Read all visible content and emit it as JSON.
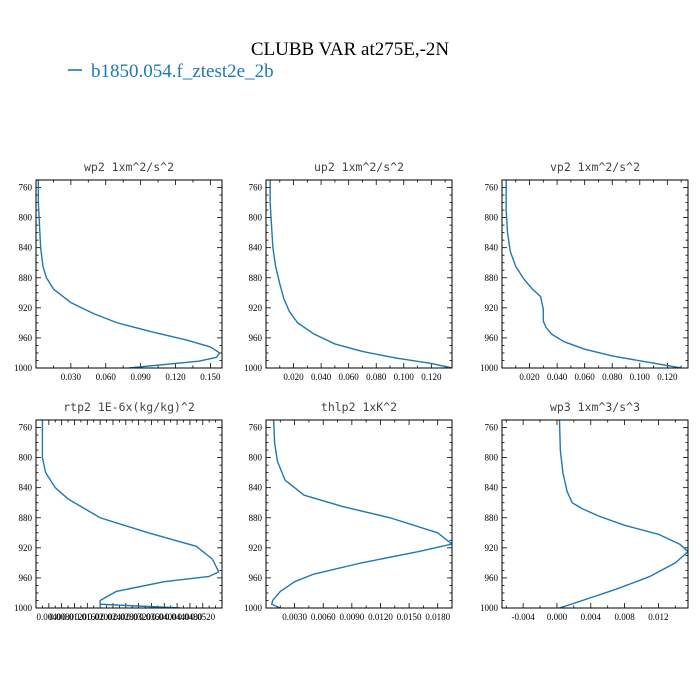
{
  "figure": {
    "title": "CLUBB VAR at275E,-2N",
    "legend": {
      "label": "b1850.054.f_ztest2e_2b",
      "color": "#1f77b4"
    }
  },
  "chart_data": [
    {
      "type": "line",
      "title": "wp2  1xm^2/s^2",
      "ylim": [
        1000,
        750
      ],
      "xlim": [
        0.0,
        0.16
      ],
      "yticks": [
        760,
        800,
        840,
        880,
        920,
        960,
        1000
      ],
      "xticks": [
        0.03,
        0.06,
        0.09,
        0.12,
        0.15
      ],
      "xticklabels": [
        "0.030",
        "0.060",
        "0.090",
        "0.120",
        "0.150"
      ],
      "series": [
        {
          "x": [
            0.002,
            0.002,
            0.003,
            0.004,
            0.006,
            0.009,
            0.015,
            0.03,
            0.05,
            0.07,
            0.1,
            0.13,
            0.15,
            0.158,
            0.155,
            0.14,
            0.08
          ],
          "y": [
            750,
            780,
            810,
            840,
            865,
            880,
            895,
            913,
            928,
            940,
            952,
            963,
            972,
            980,
            986,
            991,
            1000
          ]
        }
      ]
    },
    {
      "type": "line",
      "title": "up2  1xm^2/s^2",
      "ylim": [
        1000,
        750
      ],
      "xlim": [
        0.0,
        0.135
      ],
      "yticks": [
        760,
        800,
        840,
        880,
        920,
        960,
        1000
      ],
      "xticks": [
        0.02,
        0.04,
        0.06,
        0.08,
        0.1,
        0.12
      ],
      "xticklabels": [
        "0.020",
        "0.040",
        "0.060",
        "0.080",
        "0.100",
        "0.120"
      ],
      "series": [
        {
          "x": [
            0.003,
            0.003,
            0.004,
            0.005,
            0.007,
            0.01,
            0.013,
            0.017,
            0.023,
            0.035,
            0.05,
            0.07,
            0.095,
            0.12,
            0.135
          ],
          "y": [
            750,
            780,
            810,
            840,
            865,
            888,
            908,
            925,
            940,
            955,
            968,
            978,
            987,
            994,
            1000
          ]
        }
      ]
    },
    {
      "type": "line",
      "title": "vp2  1xm^2/s^2",
      "ylim": [
        1000,
        750
      ],
      "xlim": [
        0.0,
        0.135
      ],
      "yticks": [
        760,
        800,
        840,
        880,
        920,
        960,
        1000
      ],
      "xticks": [
        0.02,
        0.04,
        0.06,
        0.08,
        0.1,
        0.12
      ],
      "xticklabels": [
        "0.020",
        "0.040",
        "0.060",
        "0.080",
        "0.100",
        "0.120"
      ],
      "series": [
        {
          "x": [
            0.003,
            0.003,
            0.004,
            0.006,
            0.01,
            0.016,
            0.022,
            0.028,
            0.03,
            0.03,
            0.032,
            0.036,
            0.045,
            0.06,
            0.08,
            0.105,
            0.13
          ],
          "y": [
            750,
            790,
            820,
            845,
            865,
            882,
            895,
            905,
            922,
            938,
            946,
            955,
            965,
            975,
            984,
            992,
            1000
          ]
        }
      ]
    },
    {
      "type": "line",
      "title": "rtp2  1E-6x(kg/kg)^2",
      "ylim": [
        1000,
        750
      ],
      "xlim": [
        0.0,
        0.058
      ],
      "yticks": [
        760,
        800,
        840,
        880,
        920,
        960,
        1000
      ],
      "xticks": [
        0.004,
        0.008,
        0.012,
        0.016,
        0.02,
        0.024,
        0.028,
        0.032,
        0.036,
        0.04,
        0.044,
        0.048,
        0.052
      ],
      "xticklabels": [
        "0.0040",
        "0.0080",
        "0.0120",
        "0.0160",
        "0.0200",
        "0.0240",
        "0.0280",
        "0.0320",
        "0.0360",
        "0.0400",
        "0.0440",
        "0.0480",
        "0.0520"
      ],
      "series": [
        {
          "x": [
            0.002,
            0.002,
            0.002,
            0.003,
            0.006,
            0.01,
            0.02,
            0.035,
            0.05,
            0.055,
            0.057,
            0.054,
            0.04,
            0.025,
            0.02,
            0.02,
            0.045
          ],
          "y": [
            750,
            780,
            800,
            820,
            840,
            855,
            880,
            900,
            918,
            935,
            952,
            958,
            965,
            978,
            990,
            995,
            1000
          ]
        }
      ]
    },
    {
      "type": "line",
      "title": "thlp2  1xK^2",
      "ylim": [
        1000,
        750
      ],
      "xlim": [
        0.0,
        0.0195
      ],
      "yticks": [
        760,
        800,
        840,
        880,
        920,
        960,
        1000
      ],
      "xticks": [
        0.003,
        0.006,
        0.009,
        0.012,
        0.015,
        0.018
      ],
      "xticklabels": [
        "0.0030",
        "0.0060",
        "0.0090",
        "0.0120",
        "0.0150",
        "0.0180"
      ],
      "series": [
        {
          "x": [
            0.0008,
            0.0009,
            0.0012,
            0.002,
            0.004,
            0.008,
            0.013,
            0.018,
            0.0195,
            0.016,
            0.01,
            0.005,
            0.003,
            0.0015,
            0.0007,
            0.0006,
            0.0015
          ],
          "y": [
            750,
            780,
            805,
            830,
            850,
            865,
            880,
            900,
            915,
            925,
            940,
            955,
            965,
            978,
            990,
            995,
            1000
          ]
        }
      ]
    },
    {
      "type": "line",
      "title": "wp3  1xm^3/s^3",
      "ylim": [
        1000,
        750
      ],
      "xlim": [
        -0.0065,
        0.0155
      ],
      "yticks": [
        760,
        800,
        840,
        880,
        920,
        960,
        1000
      ],
      "xticks": [
        -0.004,
        0.0,
        0.004,
        0.008,
        0.012
      ],
      "xticklabels": [
        "-0.004",
        "0.000",
        "0.004",
        "0.008",
        "0.012"
      ],
      "series": [
        {
          "x": [
            0.0003,
            0.0004,
            0.0007,
            0.0012,
            0.0018,
            0.003,
            0.005,
            0.008,
            0.012,
            0.0145,
            0.0155,
            0.014,
            0.011,
            0.007,
            0.003,
            0.0003
          ],
          "y": [
            750,
            790,
            820,
            845,
            860,
            868,
            878,
            890,
            902,
            915,
            925,
            940,
            958,
            975,
            990,
            1000
          ]
        }
      ]
    }
  ]
}
